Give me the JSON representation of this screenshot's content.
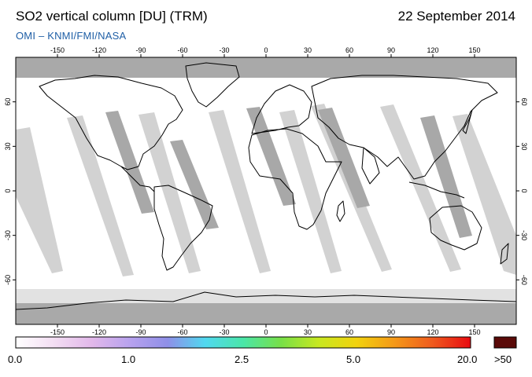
{
  "header": {
    "title": "SO2 vertical column [DU] (TRM)",
    "date": "22 September 2014",
    "credit": "OMI  –  KNMI/FMI/NASA"
  },
  "map": {
    "lon_ticks": [
      "-150",
      "-120",
      "-90",
      "-60",
      "-30",
      "0",
      "30",
      "60",
      "90",
      "120",
      "150"
    ],
    "lat_ticks": [
      "60",
      "30",
      "0",
      "-30",
      "-60"
    ],
    "background_color": "#ffffff",
    "gap_color": "#d2d2d2",
    "dark_gap_color": "#a8a8a8",
    "polar_color": "#a9a9a9",
    "coast_color": "#000000"
  },
  "colorbar": {
    "labels": [
      "0.0",
      "1.0",
      "2.5",
      "5.0",
      "20.0"
    ],
    "over_label": ">50",
    "over_color": "#5a0a08",
    "colors": [
      "#ffffff",
      "#f3def3",
      "#e2b8ea",
      "#b8a2ee",
      "#8f8fe8",
      "#50d8f0",
      "#4ae6a8",
      "#78e048",
      "#c8e820",
      "#f2d20e",
      "#f49818",
      "#ef5a1e",
      "#e80a10"
    ]
  }
}
